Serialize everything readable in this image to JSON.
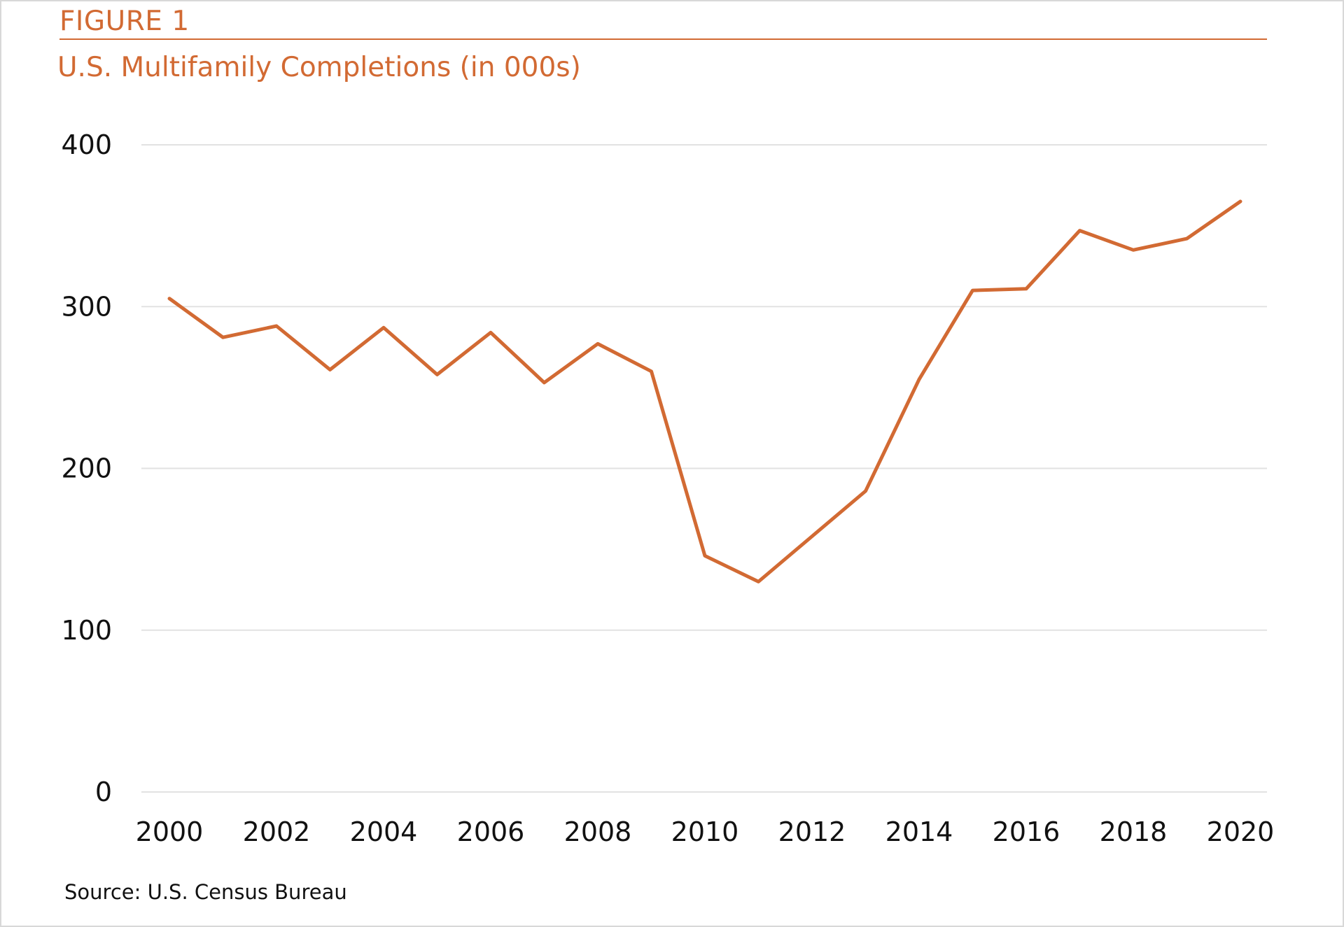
{
  "figure_label": "FIGURE 1",
  "title": "U.S. Multifamily Completions (in 000s)",
  "source": "Source: U.S. Census Bureau",
  "colors": {
    "accent": "#d26a33",
    "grid": "#e2e2e2",
    "text": "#111111"
  },
  "chart_data": {
    "type": "line",
    "title": "U.S. Multifamily Completions (in 000s)",
    "xlabel": "",
    "ylabel": "",
    "x": [
      2000,
      2001,
      2002,
      2003,
      2004,
      2005,
      2006,
      2007,
      2008,
      2009,
      2010,
      2011,
      2012,
      2013,
      2014,
      2015,
      2016,
      2017,
      2018,
      2019,
      2020
    ],
    "series": [
      {
        "values": [
          305,
          281,
          288,
          261,
          287,
          258,
          284,
          253,
          277,
          260,
          146,
          130,
          158,
          186,
          255,
          310,
          311,
          347,
          335,
          342,
          365
        ]
      }
    ],
    "xticks": [
      "2000",
      "2002",
      "2004",
      "2006",
      "2008",
      "2010",
      "2012",
      "2014",
      "2016",
      "2018",
      "2020"
    ],
    "yticks": [
      "0",
      "100",
      "200",
      "300",
      "400"
    ],
    "xlim": [
      2000,
      2020
    ],
    "ylim": [
      0,
      400
    ],
    "grid": "horizontal",
    "legend": "none"
  }
}
